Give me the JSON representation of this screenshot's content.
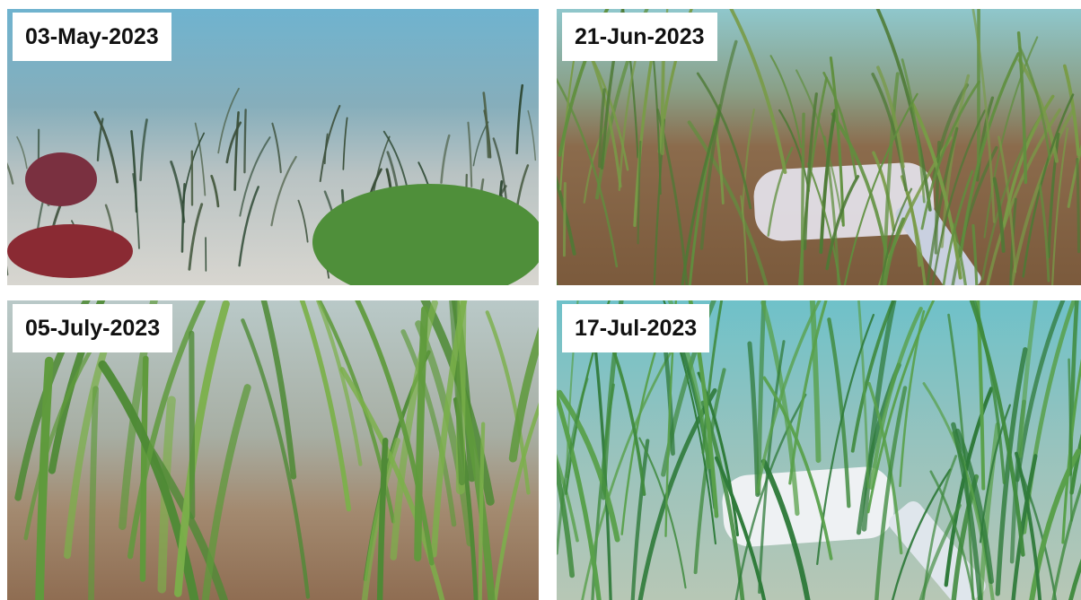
{
  "panels": [
    {
      "label": "03-May-2023"
    },
    {
      "label": "21-Jun-2023"
    },
    {
      "label": "05-July-2023"
    },
    {
      "label": "17-Jul-2023"
    }
  ]
}
